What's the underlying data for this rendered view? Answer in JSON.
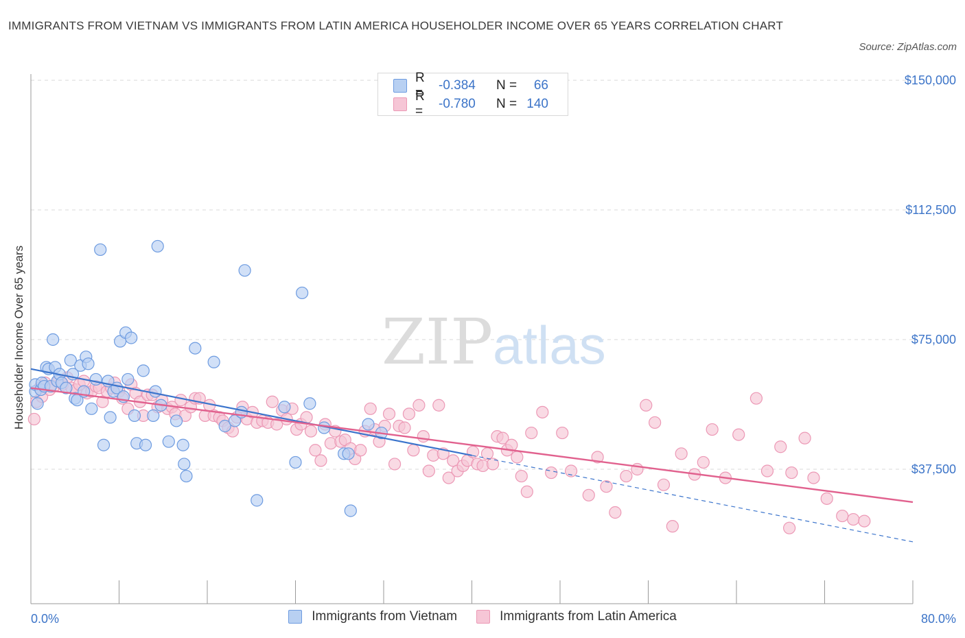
{
  "title": "IMMIGRANTS FROM VIETNAM VS IMMIGRANTS FROM LATIN AMERICA HOUSEHOLDER INCOME OVER 65 YEARS CORRELATION CHART",
  "source": "Source: ZipAtlas.com",
  "watermark": {
    "zip": "ZIP",
    "atlas": "atlas"
  },
  "legend": {
    "rows": [
      {
        "r_label": "R =",
        "r_value": "-0.384",
        "n_label": "N =",
        "n_value": "66"
      },
      {
        "r_label": "R =",
        "r_value": "-0.780",
        "n_label": "N =",
        "n_value": "140"
      }
    ]
  },
  "colors": {
    "vietnam_fill": "#b8d0f2",
    "vietnam_stroke": "#6d9be0",
    "vietnam_line": "#3b74cc",
    "latam_fill": "#f6c6d6",
    "latam_stroke": "#ec98b5",
    "latam_line": "#e1618e",
    "grid": "#d8d8d8",
    "tick_text": "#3c74c8"
  },
  "chart_data": {
    "type": "scatter",
    "title": "IMMIGRANTS FROM VIETNAM VS IMMIGRANTS FROM LATIN AMERICA HOUSEHOLDER INCOME OVER 65 YEARS CORRELATION CHART",
    "xlabel": "",
    "ylabel": "Householder Income Over 65 years",
    "xlim": [
      0,
      80
    ],
    "ylim": [
      0,
      150000
    ],
    "x_tick_labels": [
      "0.0%",
      "80.0%"
    ],
    "y_ticks": [
      37500,
      75000,
      112500,
      150000
    ],
    "y_tick_labels": [
      "$37,500",
      "$75,000",
      "$112,500",
      "$150,000"
    ],
    "grid": true,
    "legend_position": "top-center",
    "series": [
      {
        "name": "Immigrants from Vietnam",
        "R": -0.384,
        "N": 66,
        "trend": {
          "x0": 0,
          "y0": 66500,
          "x1": 40,
          "y1": 41500,
          "dashed_to_x": 80,
          "dashed_to_y": 16500
        },
        "points": [
          [
            0.4,
            60000
          ],
          [
            0.4,
            62000
          ],
          [
            0.6,
            56500
          ],
          [
            0.9,
            60500
          ],
          [
            1.0,
            62500
          ],
          [
            1.2,
            61500
          ],
          [
            1.4,
            67000
          ],
          [
            1.6,
            66500
          ],
          [
            1.8,
            61500
          ],
          [
            2.0,
            75000
          ],
          [
            2.2,
            67000
          ],
          [
            2.4,
            63000
          ],
          [
            2.6,
            65000
          ],
          [
            2.8,
            62500
          ],
          [
            3.2,
            61000
          ],
          [
            3.6,
            69000
          ],
          [
            3.8,
            65000
          ],
          [
            4.0,
            58000
          ],
          [
            4.2,
            57500
          ],
          [
            4.5,
            67500
          ],
          [
            4.8,
            60000
          ],
          [
            5.0,
            70000
          ],
          [
            5.2,
            68000
          ],
          [
            5.5,
            55000
          ],
          [
            5.9,
            63500
          ],
          [
            6.3,
            101000
          ],
          [
            6.6,
            44500
          ],
          [
            7.0,
            63000
          ],
          [
            7.2,
            52500
          ],
          [
            7.5,
            60000
          ],
          [
            7.8,
            61000
          ],
          [
            8.1,
            74500
          ],
          [
            8.4,
            58500
          ],
          [
            8.6,
            77000
          ],
          [
            8.8,
            63500
          ],
          [
            9.1,
            75500
          ],
          [
            9.4,
            53000
          ],
          [
            9.6,
            45000
          ],
          [
            10.2,
            66000
          ],
          [
            10.4,
            44500
          ],
          [
            11.1,
            53000
          ],
          [
            11.3,
            60000
          ],
          [
            11.5,
            102000
          ],
          [
            11.8,
            56000
          ],
          [
            12.5,
            45500
          ],
          [
            13.2,
            51500
          ],
          [
            13.8,
            44500
          ],
          [
            13.9,
            39000
          ],
          [
            14.1,
            35500
          ],
          [
            14.9,
            72500
          ],
          [
            16.6,
            68500
          ],
          [
            17.6,
            50000
          ],
          [
            18.5,
            51500
          ],
          [
            19.1,
            54000
          ],
          [
            19.4,
            95000
          ],
          [
            20.5,
            28500
          ],
          [
            23.0,
            55500
          ],
          [
            24.0,
            39500
          ],
          [
            24.6,
            88500
          ],
          [
            25.3,
            56500
          ],
          [
            26.6,
            49500
          ],
          [
            28.4,
            42000
          ],
          [
            28.8,
            42000
          ],
          [
            29.0,
            25500
          ],
          [
            30.6,
            50500
          ],
          [
            31.8,
            48000
          ]
        ]
      },
      {
        "name": "Immigrants from Latin America",
        "R": -0.78,
        "N": 140,
        "trend": {
          "x0": 0,
          "y0": 61000,
          "x1": 80,
          "y1": 28000
        },
        "points": [
          [
            0.3,
            52000
          ],
          [
            0.5,
            57000
          ],
          [
            0.8,
            61000
          ],
          [
            1.0,
            58500
          ],
          [
            1.3,
            62500
          ],
          [
            1.7,
            60500
          ],
          [
            2.1,
            61500
          ],
          [
            2.5,
            63000
          ],
          [
            2.9,
            62000
          ],
          [
            3.3,
            64000
          ],
          [
            3.7,
            61000
          ],
          [
            4.1,
            60500
          ],
          [
            4.4,
            62000
          ],
          [
            4.8,
            63000
          ],
          [
            5.1,
            59500
          ],
          [
            5.5,
            60000
          ],
          [
            5.9,
            61500
          ],
          [
            6.2,
            61000
          ],
          [
            6.5,
            57000
          ],
          [
            6.9,
            60000
          ],
          [
            7.3,
            61000
          ],
          [
            7.6,
            62500
          ],
          [
            8.0,
            60000
          ],
          [
            8.3,
            58000
          ],
          [
            8.8,
            55000
          ],
          [
            9.1,
            62000
          ],
          [
            9.5,
            59500
          ],
          [
            9.9,
            57000
          ],
          [
            10.2,
            53000
          ],
          [
            10.6,
            59000
          ],
          [
            11.0,
            59000
          ],
          [
            11.5,
            55500
          ],
          [
            11.9,
            57500
          ],
          [
            12.4,
            55000
          ],
          [
            12.8,
            55500
          ],
          [
            13.1,
            53500
          ],
          [
            13.6,
            57500
          ],
          [
            14.0,
            53000
          ],
          [
            14.5,
            55500
          ],
          [
            14.9,
            58000
          ],
          [
            15.3,
            58000
          ],
          [
            15.8,
            53000
          ],
          [
            16.2,
            56000
          ],
          [
            16.6,
            53000
          ],
          [
            17.1,
            52500
          ],
          [
            17.4,
            51500
          ],
          [
            17.9,
            49500
          ],
          [
            18.3,
            48500
          ],
          [
            18.7,
            52500
          ],
          [
            19.2,
            55500
          ],
          [
            19.6,
            52000
          ],
          [
            20.1,
            54000
          ],
          [
            20.5,
            51000
          ],
          [
            21.0,
            51500
          ],
          [
            21.5,
            51000
          ],
          [
            21.9,
            57000
          ],
          [
            22.3,
            50500
          ],
          [
            22.8,
            54500
          ],
          [
            23.2,
            52000
          ],
          [
            23.7,
            55000
          ],
          [
            24.1,
            49000
          ],
          [
            24.5,
            50500
          ],
          [
            25.0,
            52500
          ],
          [
            25.4,
            48500
          ],
          [
            25.8,
            43000
          ],
          [
            26.3,
            40000
          ],
          [
            26.7,
            50500
          ],
          [
            27.2,
            45000
          ],
          [
            27.6,
            48500
          ],
          [
            28.1,
            45500
          ],
          [
            28.5,
            46000
          ],
          [
            29.0,
            43500
          ],
          [
            29.4,
            40500
          ],
          [
            29.9,
            43000
          ],
          [
            30.3,
            48500
          ],
          [
            30.8,
            55000
          ],
          [
            31.2,
            49000
          ],
          [
            31.6,
            45500
          ],
          [
            32.1,
            50000
          ],
          [
            32.5,
            53500
          ],
          [
            33.0,
            39000
          ],
          [
            33.4,
            50000
          ],
          [
            33.9,
            49500
          ],
          [
            34.3,
            53500
          ],
          [
            34.7,
            43000
          ],
          [
            35.2,
            56000
          ],
          [
            35.6,
            47000
          ],
          [
            36.1,
            37000
          ],
          [
            36.5,
            41500
          ],
          [
            37.0,
            56000
          ],
          [
            37.4,
            42000
          ],
          [
            37.9,
            35000
          ],
          [
            38.3,
            40000
          ],
          [
            38.7,
            37000
          ],
          [
            39.2,
            38500
          ],
          [
            39.6,
            40000
          ],
          [
            40.1,
            42500
          ],
          [
            40.5,
            39000
          ],
          [
            41.0,
            38500
          ],
          [
            41.4,
            42000
          ],
          [
            41.9,
            39000
          ],
          [
            42.3,
            47000
          ],
          [
            42.8,
            46500
          ],
          [
            43.2,
            43000
          ],
          [
            43.6,
            44500
          ],
          [
            44.1,
            41000
          ],
          [
            44.5,
            35500
          ],
          [
            45.0,
            31000
          ],
          [
            45.4,
            48000
          ],
          [
            46.4,
            54000
          ],
          [
            47.2,
            36500
          ],
          [
            48.2,
            48000
          ],
          [
            49.0,
            37000
          ],
          [
            50.6,
            30000
          ],
          [
            51.4,
            41000
          ],
          [
            52.2,
            32500
          ],
          [
            53.0,
            25000
          ],
          [
            54.0,
            35500
          ],
          [
            55.0,
            37500
          ],
          [
            55.8,
            56000
          ],
          [
            56.6,
            51000
          ],
          [
            57.4,
            33000
          ],
          [
            58.2,
            21000
          ],
          [
            59.0,
            42000
          ],
          [
            60.2,
            36000
          ],
          [
            61.0,
            39500
          ],
          [
            61.8,
            49000
          ],
          [
            63.0,
            35000
          ],
          [
            64.2,
            47500
          ],
          [
            65.8,
            58000
          ],
          [
            66.8,
            37000
          ],
          [
            68.0,
            44000
          ],
          [
            68.8,
            20500
          ],
          [
            69.0,
            36500
          ],
          [
            70.2,
            46500
          ],
          [
            71.0,
            35000
          ],
          [
            72.2,
            29000
          ],
          [
            73.6,
            24000
          ],
          [
            74.6,
            23000
          ],
          [
            75.6,
            22500
          ]
        ]
      }
    ]
  },
  "bottom_legend": {
    "items": [
      {
        "label": "Immigrants from Vietnam"
      },
      {
        "label": "Immigrants from Latin America"
      }
    ]
  }
}
